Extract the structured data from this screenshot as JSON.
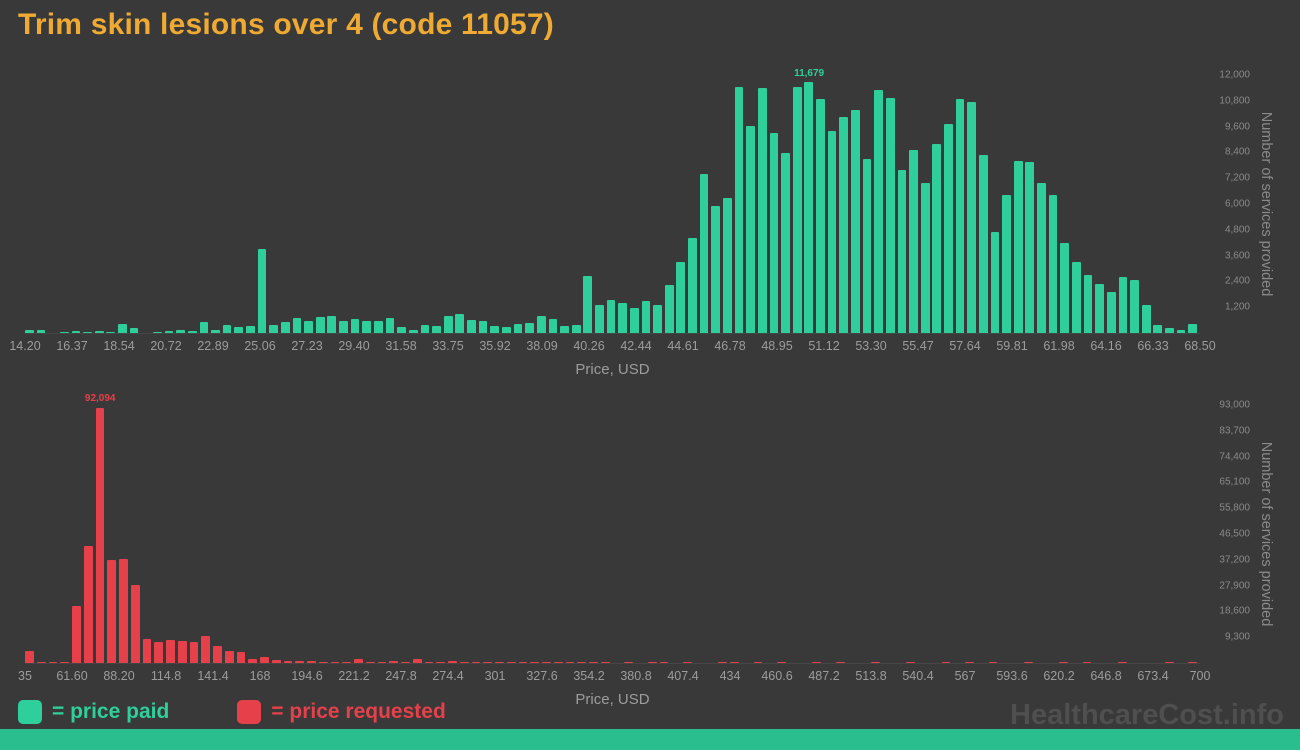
{
  "title": "Trim skin lesions over 4 (code 11057)",
  "watermark": "HealthcareCost.info",
  "legend": {
    "paid_label": "= price paid",
    "requested_label": "= price requested"
  },
  "colors": {
    "background": "#393939",
    "title": "#eeaa33",
    "paid": "#2ecf9a",
    "requested": "#e6404a",
    "tick": "#9c9c9c",
    "axis_title": "#8a8a8a",
    "watermark": "#4f4f4f",
    "footer": "#2abd8d"
  },
  "chart_data": [
    {
      "type": "bar",
      "series_name": "price paid",
      "color": "#2ecf9a",
      "xlabel": "Price, USD",
      "ylabel": "Number of services provided",
      "xlim": [
        14.2,
        68.5
      ],
      "ylim": [
        0,
        12000
      ],
      "grid": false,
      "legend_position": "bottom",
      "x_tick_labels": [
        "14.20",
        "16.37",
        "18.54",
        "20.72",
        "22.89",
        "25.06",
        "27.23",
        "29.40",
        "31.58",
        "33.75",
        "35.92",
        "38.09",
        "40.26",
        "42.44",
        "44.61",
        "46.78",
        "48.95",
        "51.12",
        "53.30",
        "55.47",
        "57.64",
        "59.81",
        "61.98",
        "64.16",
        "66.33",
        "68.50"
      ],
      "y_tick_values": [
        12000,
        10800,
        9600,
        8400,
        7200,
        6000,
        4800,
        3600,
        2400,
        1200
      ],
      "y_tick_labels": [
        "12,000",
        "10,800",
        "9,600",
        "8,400",
        "7,200",
        "6,000",
        "4,800",
        "3,600",
        "2,400",
        "1,200"
      ],
      "peak_label": "11,679",
      "values": [
        150,
        120,
        0,
        60,
        80,
        60,
        90,
        70,
        430,
        230,
        0,
        60,
        90,
        160,
        80,
        520,
        160,
        380,
        260,
        320,
        3900,
        380,
        520,
        700,
        560,
        760,
        800,
        580,
        640,
        560,
        580,
        700,
        280,
        130,
        380,
        330,
        800,
        900,
        620,
        540,
        330,
        300,
        420,
        470,
        780,
        640,
        340,
        380,
        2650,
        1300,
        1550,
        1400,
        1150,
        1500,
        1300,
        2250,
        3300,
        4400,
        7400,
        5900,
        6300,
        11450,
        9650,
        11400,
        9300,
        8350,
        11450,
        11679,
        10900,
        9400,
        10050,
        10350,
        8100,
        11300,
        10950,
        7600,
        8500,
        7000,
        8800,
        9700,
        10900,
        10750,
        8300,
        4700,
        6400,
        8000,
        7950,
        7000,
        6400,
        4200,
        3300,
        2700,
        2300,
        1900,
        2600,
        2450,
        1300,
        350,
        250,
        150,
        400
      ]
    },
    {
      "type": "bar",
      "series_name": "price requested",
      "color": "#e6404a",
      "xlabel": "Price, USD",
      "ylabel": "Number of services provided",
      "xlim": [
        35,
        700
      ],
      "ylim": [
        0,
        93000
      ],
      "grid": false,
      "legend_position": "bottom",
      "x_tick_labels": [
        "35",
        "61.60",
        "88.20",
        "114.8",
        "141.4",
        "168",
        "194.6",
        "221.2",
        "247.8",
        "274.4",
        "301",
        "327.6",
        "354.2",
        "380.8",
        "407.4",
        "434",
        "460.6",
        "487.2",
        "513.8",
        "540.4",
        "567",
        "593.6",
        "620.2",
        "646.8",
        "673.4",
        "700"
      ],
      "y_tick_values": [
        93000,
        83700,
        74400,
        65100,
        55800,
        46500,
        37200,
        27900,
        18600,
        9300
      ],
      "y_tick_labels": [
        "93,000",
        "83,700",
        "74,400",
        "65,100",
        "55,800",
        "46,500",
        "37,200",
        "27,900",
        "18,600",
        "9,300"
      ],
      "peak_label": "92,094",
      "values": [
        4200,
        400,
        250,
        350,
        20500,
        42000,
        92094,
        37000,
        37500,
        28000,
        8800,
        7400,
        8200,
        8000,
        7600,
        9800,
        6200,
        4300,
        3900,
        1400,
        2200,
        1100,
        900,
        700,
        900,
        500,
        400,
        500,
        1300,
        500,
        400,
        600,
        500,
        1500,
        500,
        400,
        600,
        300,
        400,
        300,
        400,
        200,
        100,
        200,
        150,
        100,
        200,
        100,
        150,
        100,
        0,
        100,
        0,
        150,
        100,
        0,
        100,
        0,
        0,
        100,
        150,
        0,
        100,
        0,
        100,
        0,
        0,
        150,
        0,
        100,
        0,
        0,
        100,
        0,
        0,
        150,
        0,
        0,
        100,
        0,
        300,
        0,
        100,
        0,
        0,
        100,
        0,
        0,
        200,
        0,
        100,
        0,
        0,
        100,
        0,
        0,
        0,
        100,
        0,
        300
      ]
    }
  ]
}
